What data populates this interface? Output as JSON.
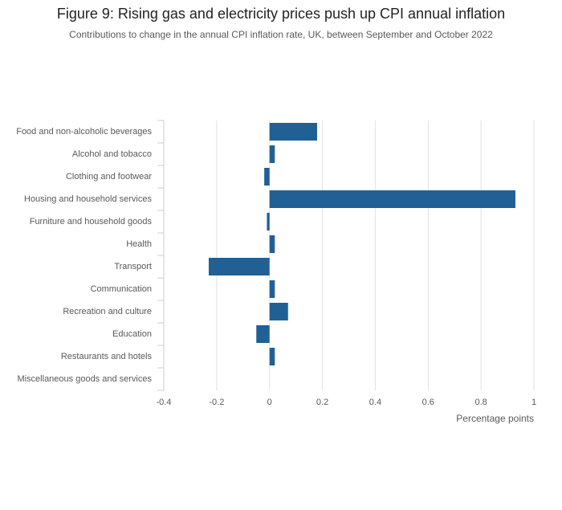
{
  "chart_data": {
    "type": "hbar",
    "title": "Figure 9: Rising gas and electricity prices push up CPI annual inflation",
    "subtitle": "Contributions to change in the annual CPI inflation rate, UK, between September and October 2022",
    "x_label": "Percentage points",
    "categories": [
      "Food and non-alcoholic beverages",
      "Alcohol and tobacco",
      "Clothing and footwear",
      "Housing and household services",
      "Furniture and household goods",
      "Health",
      "Transport",
      "Communication",
      "Recreation and culture",
      "Education",
      "Restaurants and hotels",
      "Miscellaneous goods and services"
    ],
    "values": [
      0.18,
      0.02,
      -0.02,
      0.93,
      -0.01,
      0.02,
      -0.23,
      0.02,
      0.07,
      -0.05,
      0.02,
      0
    ],
    "color": "#206095",
    "xlim": [
      -0.4,
      1
    ],
    "xticks": [
      -0.4,
      -0.2,
      0,
      0.2,
      0.4,
      0.6,
      0.8,
      1
    ],
    "grid": true
  }
}
